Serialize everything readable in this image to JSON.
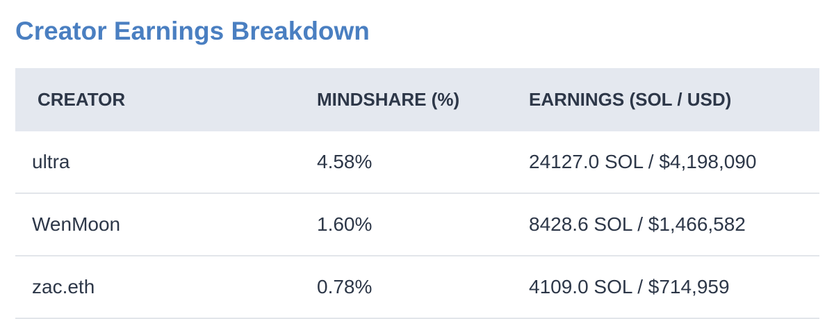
{
  "header": {
    "title": "Creator Earnings Breakdown"
  },
  "table": {
    "columns": [
      "CREATOR",
      "MINDSHARE (%)",
      "EARNINGS (SOL / USD)"
    ],
    "rows": [
      [
        "ultra",
        "4.58%",
        "24127.0 SOL / $4,198,090"
      ],
      [
        "WenMoon",
        "1.60%",
        "8428.6 SOL / $1,466,582"
      ],
      [
        "zac.eth",
        "0.78%",
        "4109.0 SOL / $714,959"
      ]
    ]
  }
}
